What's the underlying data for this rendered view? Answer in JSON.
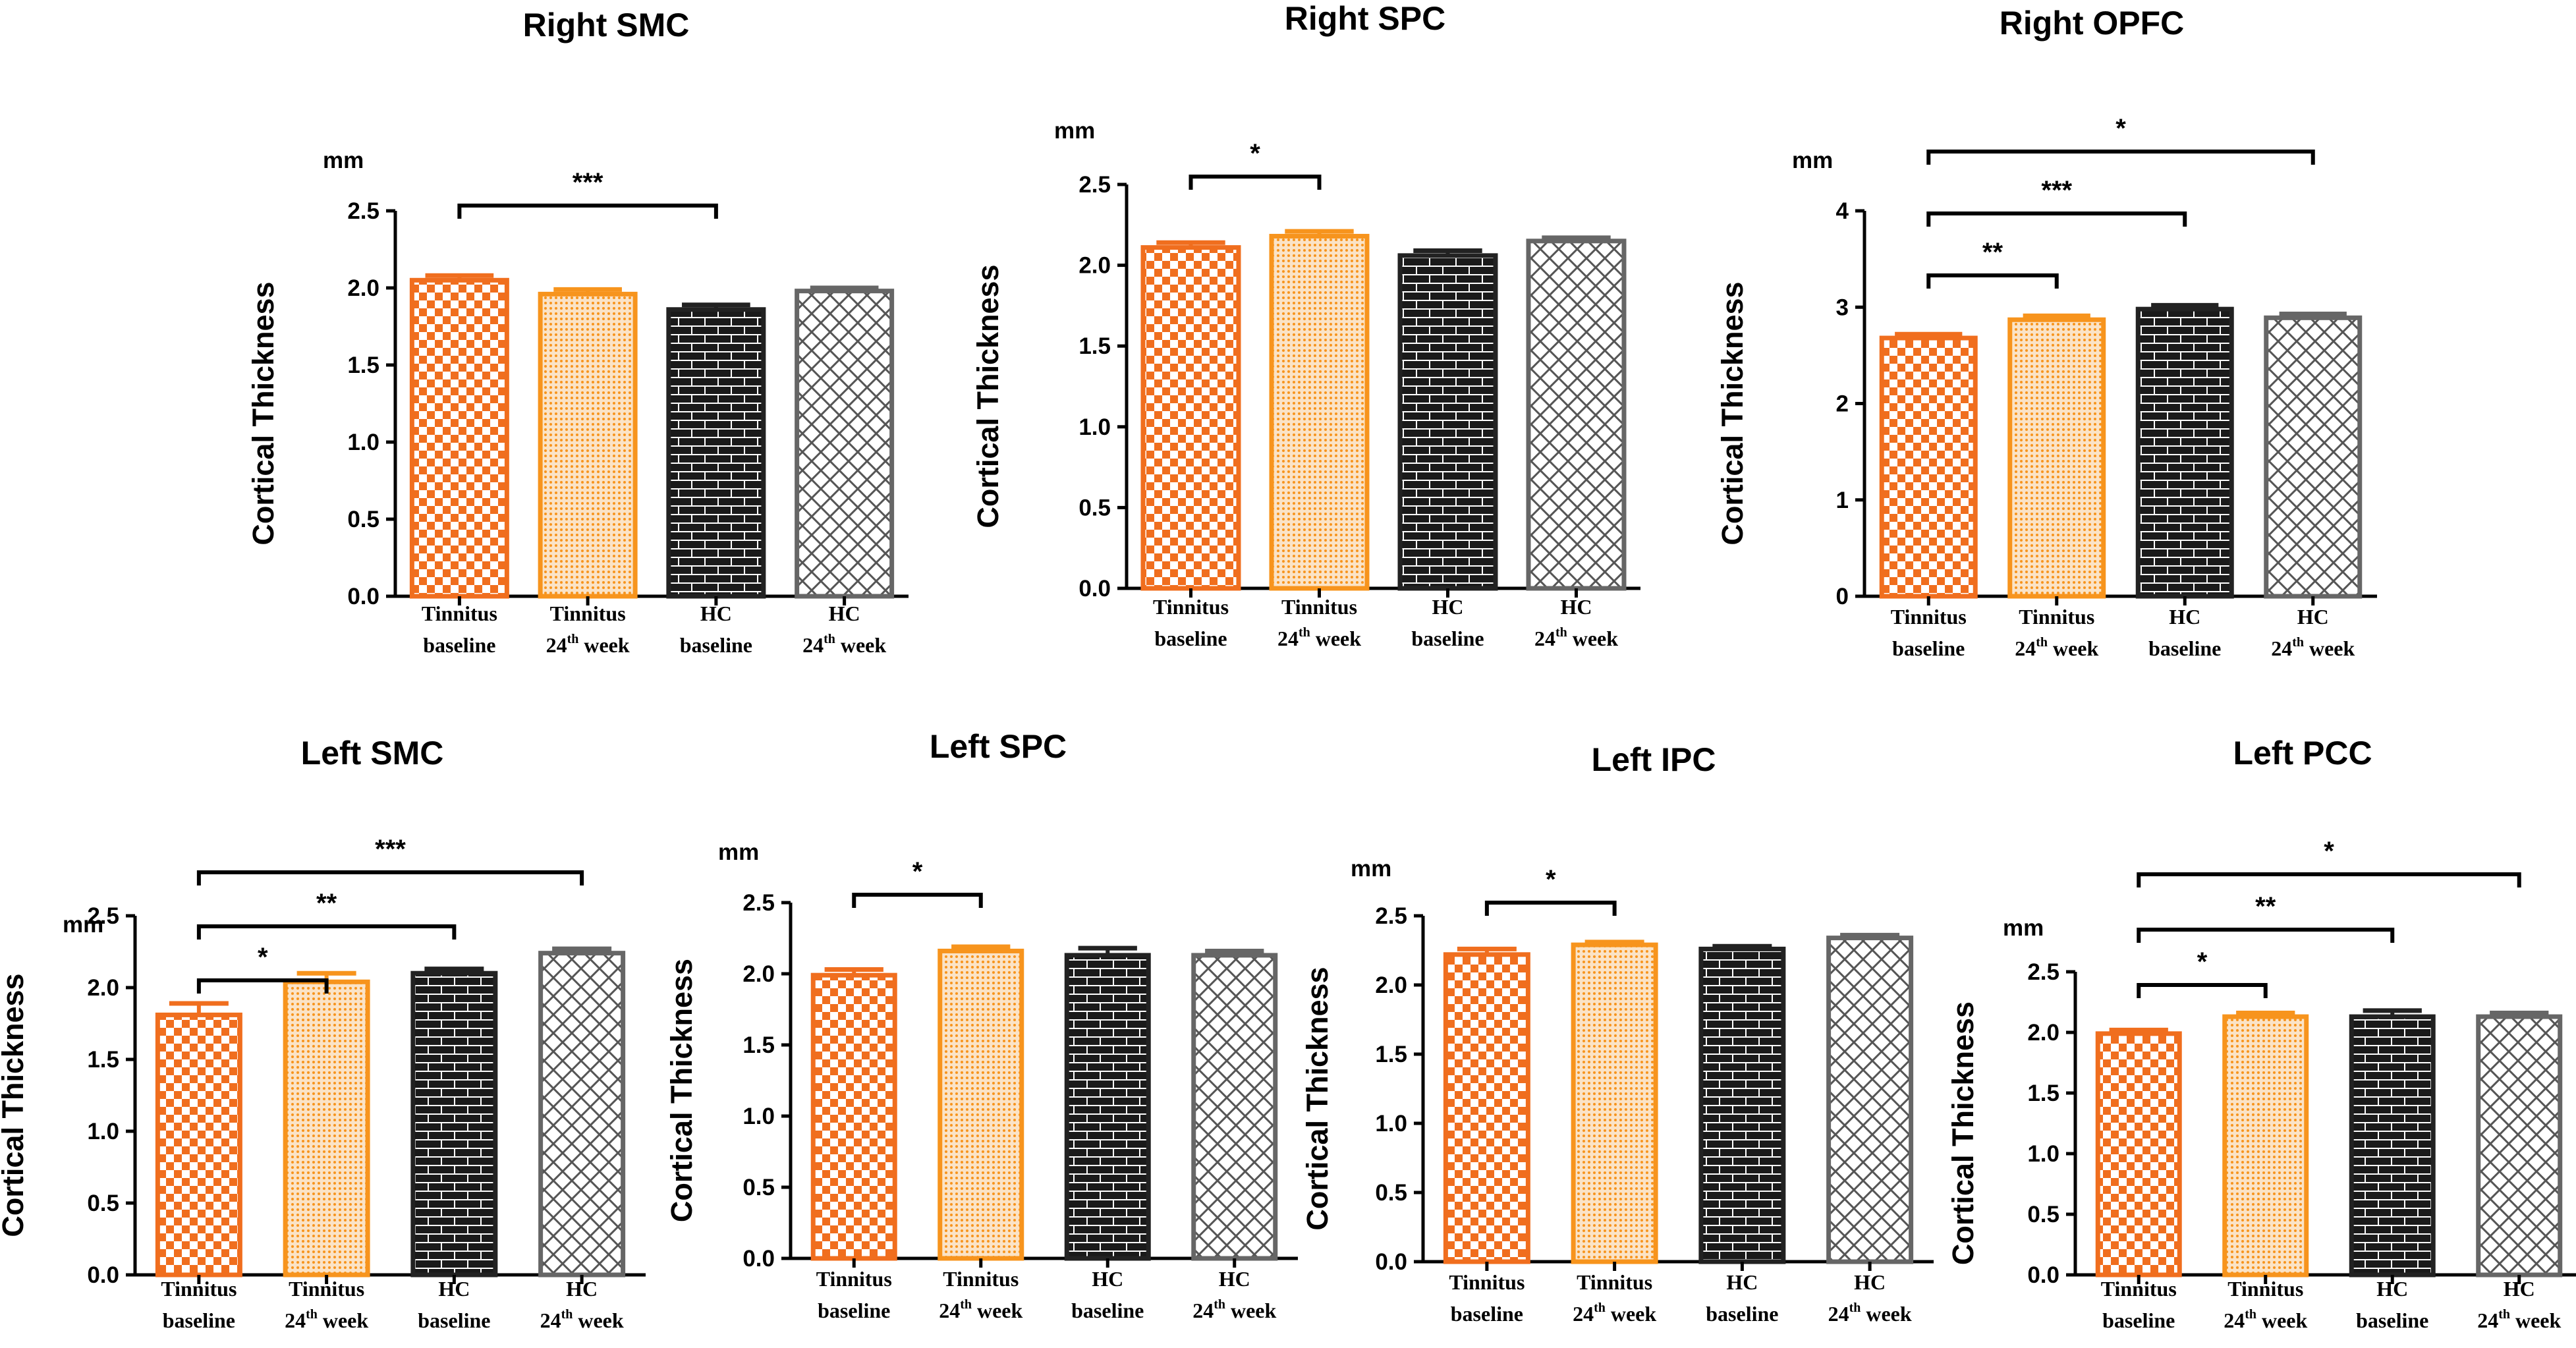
{
  "figure": {
    "y_axis_label": "Cortical Thickness",
    "unit": "mm"
  },
  "styles": [
    {
      "key": "tin_base",
      "stroke": "#F06E1E",
      "fill": "#F5C29C",
      "pattern": "checker"
    },
    {
      "key": "tin_24",
      "stroke": "#F7941D",
      "fill": "#FAD9B0",
      "pattern": "dots"
    },
    {
      "key": "hc_base",
      "stroke": "#222222",
      "fill": "#333333",
      "pattern": "brick"
    },
    {
      "key": "hc_24",
      "stroke": "#666666",
      "fill": "#FFFFFF",
      "pattern": "cross"
    }
  ],
  "categories": [
    {
      "line1": "Tinnitus",
      "line2_prefix": "baseline",
      "sup": "",
      "line2_suffix": ""
    },
    {
      "line1": "Tinnitus",
      "line2_prefix": "24",
      "sup": "th",
      "line2_suffix": " week"
    },
    {
      "line1": "HC",
      "line2_prefix": "baseline",
      "sup": "",
      "line2_suffix": ""
    },
    {
      "line1": "HC",
      "line2_prefix": "24",
      "sup": "th",
      "line2_suffix": " week"
    }
  ],
  "chart_data": [
    {
      "type": "bar",
      "title": "Right SMC",
      "ylabel": "Cortical Thickness",
      "ylim": [
        0,
        2.5
      ],
      "yticks": [
        "0.0",
        "0.5",
        "1.0",
        "1.5",
        "2.0",
        "2.5"
      ],
      "categories": [
        "Tinnitus baseline",
        "Tinnitus 24th week",
        "HC baseline",
        "HC 24th week"
      ],
      "values": [
        2.05,
        1.96,
        1.86,
        1.98
      ],
      "errors": [
        0.03,
        0.03,
        0.03,
        0.02
      ],
      "significance": [
        {
          "from": 0,
          "to": 2,
          "label": "***"
        }
      ]
    },
    {
      "type": "bar",
      "title": "Right SPC",
      "ylabel": "Cortical Thickness",
      "ylim": [
        0,
        2.5
      ],
      "yticks": [
        "0.0",
        "0.5",
        "1.0",
        "1.5",
        "2.0",
        "2.5"
      ],
      "categories": [
        "Tinnitus baseline",
        "Tinnitus 24th week",
        "HC baseline",
        "HC 24th week"
      ],
      "values": [
        2.11,
        2.18,
        2.06,
        2.15
      ],
      "errors": [
        0.03,
        0.03,
        0.03,
        0.02
      ],
      "significance": [
        {
          "from": 0,
          "to": 1,
          "label": "*"
        }
      ]
    },
    {
      "type": "bar",
      "title": "Right  OPFC",
      "ylabel": "Cortical Thickness",
      "ylim": [
        0,
        4
      ],
      "yticks": [
        "0",
        "1",
        "2",
        "3",
        "4"
      ],
      "categories": [
        "Tinnitus baseline",
        "Tinnitus 24th week",
        "HC baseline",
        "HC 24th week"
      ],
      "values": [
        2.68,
        2.87,
        2.98,
        2.89
      ],
      "errors": [
        0.04,
        0.04,
        0.04,
        0.04
      ],
      "significance": [
        {
          "from": 0,
          "to": 1,
          "label": "**"
        },
        {
          "from": 0,
          "to": 2,
          "label": "***"
        },
        {
          "from": 0,
          "to": 3,
          "label": "*"
        }
      ]
    },
    {
      "type": "bar",
      "title": "Left SMC",
      "ylabel": "Cortical Thickness",
      "ylim": [
        0,
        2.5
      ],
      "yticks": [
        "0.0",
        "0.5",
        "1.0",
        "1.5",
        "2.0",
        "2.5"
      ],
      "categories": [
        "Tinnitus baseline",
        "Tinnitus 24th week",
        "HC baseline",
        "HC 24th week"
      ],
      "values": [
        1.81,
        2.04,
        2.1,
        2.24
      ],
      "errors": [
        0.08,
        0.06,
        0.03,
        0.03
      ],
      "significance": [
        {
          "from": 0,
          "to": 1,
          "label": "*"
        },
        {
          "from": 0,
          "to": 2,
          "label": "**"
        },
        {
          "from": 0,
          "to": 3,
          "label": "***"
        }
      ]
    },
    {
      "type": "bar",
      "title": "Left SPC",
      "ylabel": "Cortical Thickness",
      "ylim": [
        0,
        2.5
      ],
      "yticks": [
        "0.0",
        "0.5",
        "1.0",
        "1.5",
        "2.0",
        "2.5"
      ],
      "categories": [
        "Tinnitus baseline",
        "Tinnitus 24th week",
        "HC baseline",
        "HC 24th week"
      ],
      "values": [
        1.99,
        2.16,
        2.13,
        2.13
      ],
      "errors": [
        0.04,
        0.03,
        0.05,
        0.03
      ],
      "significance": [
        {
          "from": 0,
          "to": 1,
          "label": "*"
        }
      ]
    },
    {
      "type": "bar",
      "title": "Left IPC",
      "ylabel": "Cortical Thickness",
      "ylim": [
        0,
        2.5
      ],
      "yticks": [
        "0.0",
        "0.5",
        "1.0",
        "1.5",
        "2.0",
        "2.5"
      ],
      "categories": [
        "Tinnitus baseline",
        "Tinnitus 24th week",
        "HC baseline",
        "HC 24th week"
      ],
      "values": [
        2.22,
        2.29,
        2.26,
        2.34
      ],
      "errors": [
        0.04,
        0.02,
        0.02,
        0.02
      ],
      "significance": [
        {
          "from": 0,
          "to": 1,
          "label": "*"
        }
      ]
    },
    {
      "type": "bar",
      "title": "Left PCC",
      "ylabel": "Cortical Thickness",
      "ylim": [
        0,
        2.5
      ],
      "yticks": [
        "0.0",
        "0.5",
        "1.0",
        "1.5",
        "2.0",
        "2.5"
      ],
      "categories": [
        "Tinnitus baseline",
        "Tinnitus 24th week",
        "HC baseline",
        "HC 24th week"
      ],
      "values": [
        1.99,
        2.13,
        2.13,
        2.13
      ],
      "errors": [
        0.03,
        0.03,
        0.05,
        0.03
      ],
      "significance": [
        {
          "from": 0,
          "to": 1,
          "label": "*"
        },
        {
          "from": 0,
          "to": 2,
          "label": "**"
        },
        {
          "from": 0,
          "to": 3,
          "label": "*"
        }
      ]
    }
  ]
}
